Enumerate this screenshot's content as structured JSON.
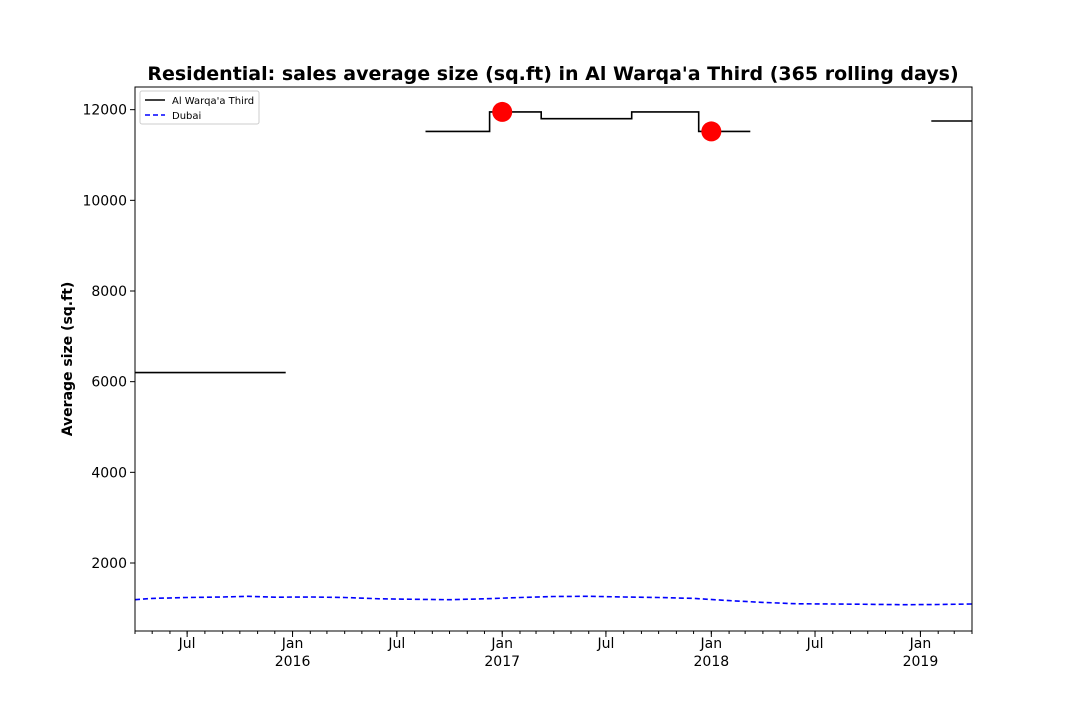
{
  "chart_data": {
    "type": "line",
    "title": "Residential: sales average size (sq.ft) in Al Warqa'a Third (365 rolling days)",
    "xlabel": "",
    "ylabel": "Average size (sq.ft)",
    "xlim": [
      "2015-04-01",
      "2019-04-01"
    ],
    "ylim": [
      500,
      12500
    ],
    "grid": false,
    "legend_position": "top-left",
    "y_ticks": [
      2000,
      4000,
      6000,
      8000,
      10000,
      12000
    ],
    "x_ticks": [
      {
        "date": "2015-07-01",
        "label": "Jul",
        "year": ""
      },
      {
        "date": "2016-01-01",
        "label": "Jan",
        "year": "2016"
      },
      {
        "date": "2016-07-01",
        "label": "Jul",
        "year": ""
      },
      {
        "date": "2017-01-01",
        "label": "Jan",
        "year": "2017"
      },
      {
        "date": "2017-07-01",
        "label": "Jul",
        "year": ""
      },
      {
        "date": "2018-01-01",
        "label": "Jan",
        "year": "2018"
      },
      {
        "date": "2018-07-01",
        "label": "Jul",
        "year": ""
      },
      {
        "date": "2019-01-01",
        "label": "Jan",
        "year": "2019"
      }
    ],
    "series": [
      {
        "name": "Al Warqa'a Third",
        "color": "#000000",
        "style": "solid",
        "segments": [
          [
            [
              "2015-04-01",
              6200
            ],
            [
              "2015-12-20",
              6200
            ]
          ],
          [
            [
              "2016-08-20",
              11520
            ],
            [
              "2016-12-10",
              11520
            ],
            [
              "2016-12-10",
              11950
            ],
            [
              "2017-03-10",
              11950
            ],
            [
              "2017-03-10",
              11800
            ],
            [
              "2017-08-15",
              11800
            ],
            [
              "2017-08-15",
              11950
            ],
            [
              "2017-12-10",
              11950
            ],
            [
              "2017-12-10",
              11520
            ],
            [
              "2018-03-10",
              11520
            ]
          ],
          [
            [
              "2019-01-20",
              11750
            ],
            [
              "2019-04-01",
              11750
            ]
          ]
        ]
      },
      {
        "name": "Dubai",
        "color": "#0000ff",
        "style": "dashed",
        "points": [
          [
            "2015-04-01",
            1190
          ],
          [
            "2015-05-01",
            1220
          ],
          [
            "2015-07-01",
            1240
          ],
          [
            "2015-09-01",
            1250
          ],
          [
            "2015-10-15",
            1265
          ],
          [
            "2015-12-01",
            1245
          ],
          [
            "2016-02-01",
            1250
          ],
          [
            "2016-04-01",
            1240
          ],
          [
            "2016-06-01",
            1210
          ],
          [
            "2016-08-01",
            1200
          ],
          [
            "2016-10-01",
            1190
          ],
          [
            "2016-12-01",
            1210
          ],
          [
            "2017-02-01",
            1240
          ],
          [
            "2017-04-01",
            1260
          ],
          [
            "2017-06-01",
            1265
          ],
          [
            "2017-08-01",
            1250
          ],
          [
            "2017-10-01",
            1240
          ],
          [
            "2017-12-01",
            1220
          ],
          [
            "2018-02-01",
            1170
          ],
          [
            "2018-04-01",
            1130
          ],
          [
            "2018-06-01",
            1100
          ],
          [
            "2018-08-01",
            1095
          ],
          [
            "2018-10-01",
            1090
          ],
          [
            "2018-12-01",
            1080
          ],
          [
            "2019-02-01",
            1085
          ],
          [
            "2019-04-01",
            1095
          ]
        ]
      }
    ],
    "markers": [
      {
        "date": "2017-01-01",
        "value": 11950,
        "color": "#ff0000"
      },
      {
        "date": "2018-01-01",
        "value": 11520,
        "color": "#ff0000"
      }
    ]
  }
}
